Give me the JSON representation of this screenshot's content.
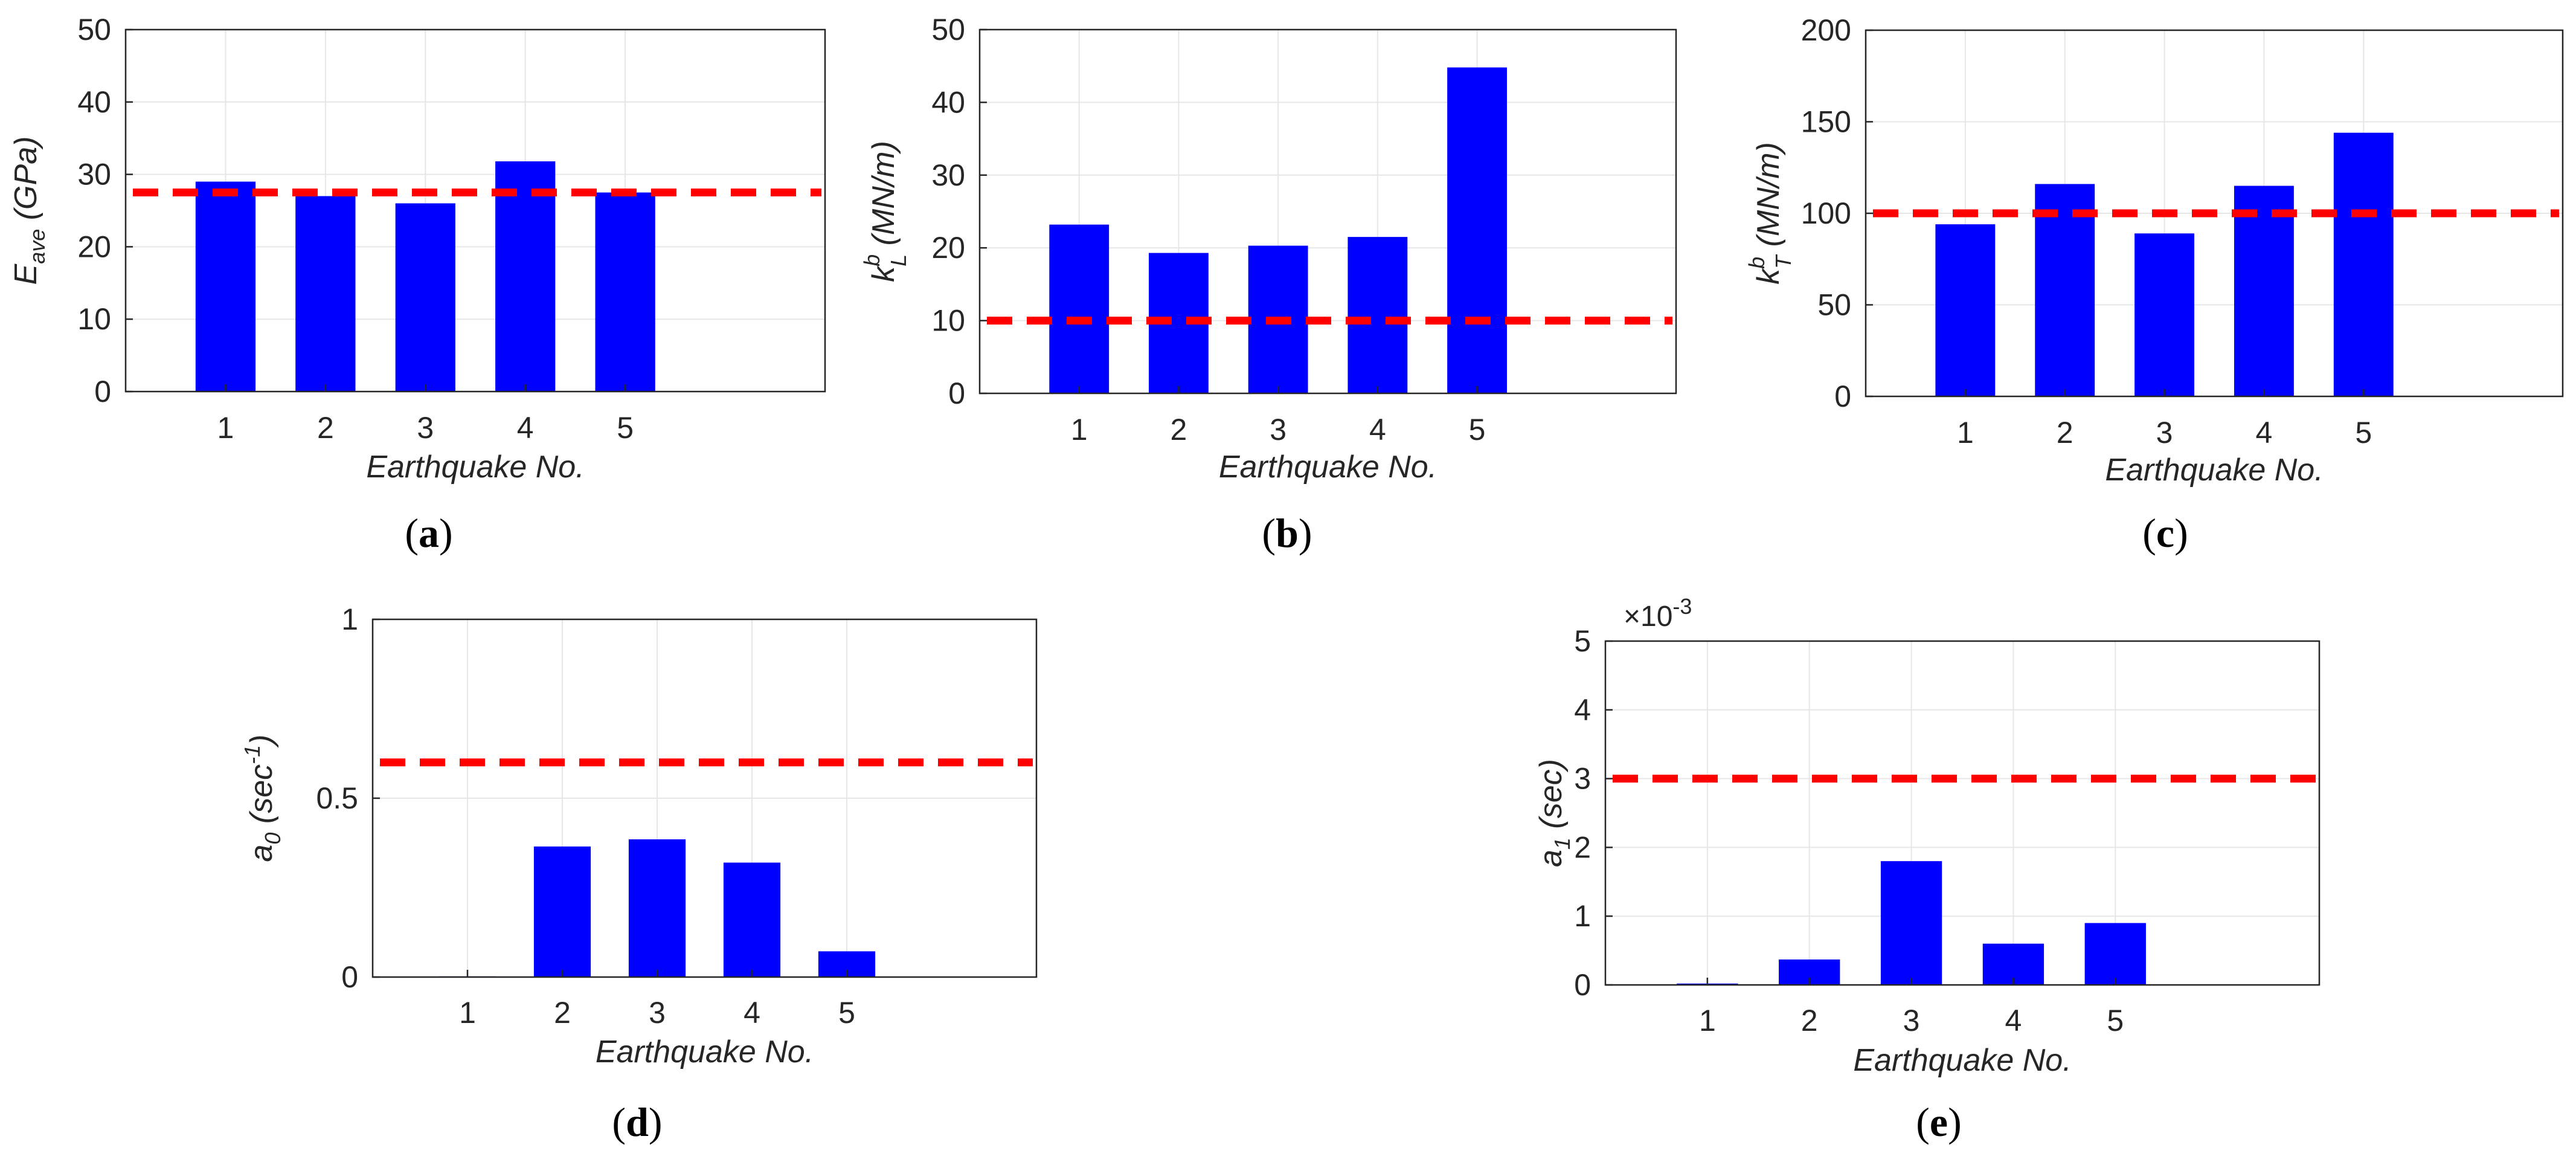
{
  "colors": {
    "bar": "#0000ff",
    "reference_line": "#ff0000",
    "grid": "#e6e6e6",
    "axes": "#262626"
  },
  "chart_data": [
    {
      "id": "a",
      "type": "bar",
      "categories": [
        "1",
        "2",
        "3",
        "4",
        "5"
      ],
      "values": [
        29,
        27,
        26,
        31.8,
        27.5
      ],
      "reference_value": 27.5,
      "ylim": [
        0,
        50
      ],
      "yticks": [
        0,
        10,
        20,
        30,
        40,
        50
      ],
      "ylabel_main": "E",
      "ylabel_sub": "ave",
      "ylabel_sup": "",
      "ylabel_unit": " (GPa)",
      "xlabel": "Earthquake No.",
      "caption_letter": "a",
      "exponent_label": "",
      "grid": true
    },
    {
      "id": "b",
      "type": "bar",
      "categories": [
        "1",
        "2",
        "3",
        "4",
        "5"
      ],
      "values": [
        23.2,
        19.3,
        20.3,
        21.5,
        44.8
      ],
      "reference_value": 10,
      "ylim": [
        0,
        50
      ],
      "yticks": [
        0,
        10,
        20,
        30,
        40,
        50
      ],
      "ylabel_main": "k",
      "ylabel_sub": "L",
      "ylabel_sup": "b",
      "ylabel_unit": " (MN/m)",
      "xlabel": "Earthquake No.",
      "caption_letter": "b",
      "exponent_label": "",
      "grid": true
    },
    {
      "id": "c",
      "type": "bar",
      "categories": [
        "1",
        "2",
        "3",
        "4",
        "5"
      ],
      "values": [
        94,
        116,
        89,
        115,
        144
      ],
      "reference_value": 100,
      "ylim": [
        0,
        200
      ],
      "yticks": [
        0,
        50,
        100,
        150,
        200
      ],
      "ylabel_main": "k",
      "ylabel_sub": "T",
      "ylabel_sup": "b",
      "ylabel_unit": " (MN/m)",
      "xlabel": "Earthquake No.",
      "caption_letter": "c",
      "exponent_label": "",
      "grid": true
    },
    {
      "id": "d",
      "type": "bar",
      "categories": [
        "1",
        "2",
        "3",
        "4",
        "5"
      ],
      "values": [
        0.002,
        0.365,
        0.385,
        0.32,
        0.072
      ],
      "reference_value": 0.6,
      "ylim": [
        0,
        1
      ],
      "yticks": [
        0,
        0.5,
        1
      ],
      "ytick_labels": [
        "0",
        "0.5",
        "1"
      ],
      "ylabel_main": "a",
      "ylabel_sub": "0",
      "ylabel_sup": "",
      "ylabel_unit": " (sec",
      "ylabel_unit_sup": "-1",
      "ylabel_unit_close": ")",
      "xlabel": "Earthquake No.",
      "caption_letter": "d",
      "exponent_label": "",
      "grid": true
    },
    {
      "id": "e",
      "type": "bar",
      "categories": [
        "1",
        "2",
        "3",
        "4",
        "5"
      ],
      "values": [
        0.02,
        0.37,
        1.8,
        0.6,
        0.9
      ],
      "reference_value": 3,
      "ylim": [
        0,
        5
      ],
      "yticks": [
        0,
        1,
        2,
        3,
        4,
        5
      ],
      "ylabel_main": "a",
      "ylabel_sub": "1",
      "ylabel_sup": "",
      "ylabel_unit": " (sec)",
      "xlabel": "Earthquake No.",
      "caption_letter": "e",
      "exponent_base": "×10",
      "exponent_power": "-3",
      "grid": true
    }
  ]
}
